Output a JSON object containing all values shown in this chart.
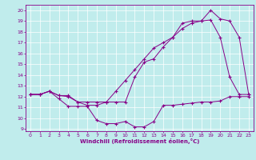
{
  "xlabel": "Windchill (Refroidissement éolien,°C)",
  "bg_color": "#c0ecec",
  "line_color": "#880088",
  "xlim": [
    -0.5,
    23.5
  ],
  "ylim": [
    8.8,
    20.5
  ],
  "yticks": [
    9,
    10,
    11,
    12,
    13,
    14,
    15,
    16,
    17,
    18,
    19,
    20
  ],
  "xticks": [
    0,
    1,
    2,
    3,
    4,
    5,
    6,
    7,
    8,
    9,
    10,
    11,
    12,
    13,
    14,
    15,
    16,
    17,
    18,
    19,
    20,
    21,
    22,
    23
  ],
  "series": [
    {
      "x": [
        0,
        1,
        2,
        3,
        4,
        5,
        6,
        7,
        8,
        9,
        10,
        11,
        12,
        13,
        14,
        15,
        16,
        17,
        18,
        19,
        20,
        21,
        22,
        23
      ],
      "y": [
        12.2,
        12.2,
        12.5,
        11.8,
        11.1,
        11.1,
        11.1,
        9.8,
        9.5,
        9.5,
        9.7,
        9.2,
        9.2,
        9.7,
        11.2,
        11.2,
        11.3,
        11.4,
        11.5,
        11.5,
        11.6,
        12.0,
        12.0,
        12.0
      ]
    },
    {
      "x": [
        0,
        1,
        2,
        3,
        4,
        5,
        6,
        7,
        8,
        9,
        10,
        11,
        12,
        13,
        14,
        15,
        16,
        17,
        18,
        19,
        20,
        21,
        22,
        23
      ],
      "y": [
        12.2,
        12.2,
        12.5,
        12.1,
        12.1,
        11.5,
        11.2,
        11.2,
        11.5,
        11.5,
        11.5,
        13.8,
        15.2,
        15.5,
        16.6,
        17.5,
        18.8,
        19.0,
        19.0,
        19.1,
        17.5,
        13.8,
        12.2,
        12.2
      ]
    },
    {
      "x": [
        0,
        1,
        2,
        3,
        4,
        5,
        6,
        7,
        8,
        9,
        10,
        11,
        12,
        13,
        14,
        15,
        16,
        17,
        18,
        19,
        20,
        21,
        22,
        23
      ],
      "y": [
        12.2,
        12.2,
        12.5,
        12.1,
        12.0,
        11.5,
        11.5,
        11.5,
        11.5,
        12.5,
        13.5,
        14.5,
        15.5,
        16.5,
        17.0,
        17.5,
        18.3,
        18.8,
        19.0,
        20.0,
        19.2,
        19.0,
        17.5,
        12.2
      ]
    }
  ]
}
